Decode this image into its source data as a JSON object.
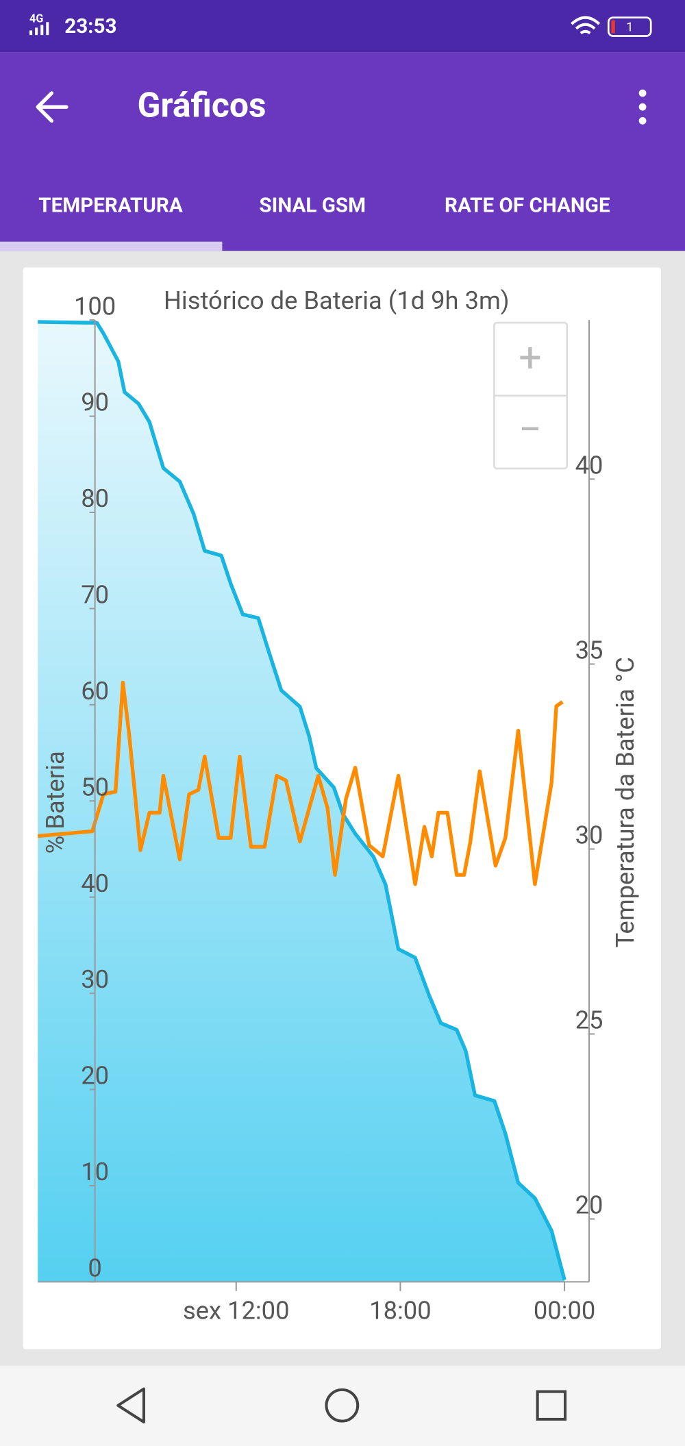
{
  "status_bar": {
    "network": "4G",
    "time": "23:53",
    "battery": "1"
  },
  "app_bar": {
    "title": "Gráficos"
  },
  "tabs": [
    "TEMPERATURA",
    "SINAL GSM",
    "RATE OF CHANGE"
  ],
  "zoom": {
    "in": "+",
    "out": "−"
  },
  "chart_data": {
    "type": "line",
    "title": "Histórico de Bateria (1d 9h 3m)",
    "ylabel": "% Bateria",
    "y2label": "Temperatura da Bateria °C",
    "xlim": [
      4.75,
      24.9
    ],
    "xticks": [
      {
        "value": 12,
        "label": "sex 12:00"
      },
      {
        "value": 18,
        "label": "18:00"
      },
      {
        "value": 24,
        "label": "00:00"
      }
    ],
    "ylim": [
      0,
      100
    ],
    "yticks": [
      0,
      10,
      20,
      30,
      40,
      50,
      60,
      70,
      80,
      90,
      100
    ],
    "y2lim": [
      18.3,
      44.3
    ],
    "y2ticks": [
      20,
      25,
      30,
      35,
      40
    ],
    "series": [
      {
        "color": "#19b4e0",
        "fill": true,
        "x": [
          4.75,
          6.91,
          7.15,
          7.69,
          7.92,
          8.43,
          8.83,
          9.34,
          9.94,
          10.45,
          10.85,
          11.46,
          11.8,
          12.24,
          12.81,
          13.15,
          13.65,
          14.33,
          14.67,
          14.93,
          15.57,
          15.91,
          16.35,
          17.02,
          17.46,
          17.93,
          18.54,
          19.05,
          19.48,
          20.06,
          20.39,
          20.73,
          21.44,
          21.84,
          22.31,
          22.92,
          23.53,
          24
        ],
        "values": [
          99.8,
          99.7,
          98.6,
          95.7,
          92.5,
          91.3,
          89.4,
          84.6,
          83.2,
          79.8,
          76,
          75.5,
          72.6,
          69.4,
          69,
          65.9,
          61.5,
          59.8,
          56.7,
          53.4,
          51.4,
          48.6,
          46.6,
          44.2,
          41.3,
          34.6,
          33.7,
          29.8,
          26.9,
          26.2,
          24,
          19.4,
          18.8,
          15.4,
          10.3,
          8.7,
          5.3,
          0.2
        ]
      },
      {
        "color": "#ff8c00",
        "axis": "y2",
        "x": [
          4.75,
          6.74,
          7.15,
          7.59,
          7.86,
          8.09,
          8.5,
          8.83,
          9.2,
          9.34,
          9.94,
          10.28,
          10.62,
          10.85,
          11.36,
          11.8,
          12.13,
          12.54,
          13.04,
          13.48,
          13.82,
          14.33,
          14.67,
          15,
          15.34,
          15.61,
          16.01,
          16.35,
          16.86,
          17.36,
          17.93,
          18.54,
          18.88,
          19.15,
          19.39,
          19.72,
          20.06,
          20.33,
          20.56,
          20.9,
          21.48,
          21.84,
          22.31,
          22.92,
          23.53,
          23.7,
          23.93
        ],
        "values": [
          30.35,
          30.48,
          31.48,
          31.55,
          34.5,
          33.1,
          29.97,
          30.98,
          30.98,
          31.98,
          29.72,
          31.48,
          31.6,
          32.5,
          30.3,
          30.3,
          32.5,
          30.06,
          30.06,
          31.98,
          31.85,
          30.2,
          31.1,
          31.98,
          31.1,
          29.3,
          31.35,
          32.2,
          30.1,
          29.8,
          31.98,
          29.05,
          30.6,
          29.8,
          30.98,
          30.98,
          29.3,
          29.3,
          30.2,
          32.1,
          29.55,
          30.3,
          33.2,
          29.05,
          31.8,
          33.86,
          33.98
        ]
      }
    ]
  }
}
